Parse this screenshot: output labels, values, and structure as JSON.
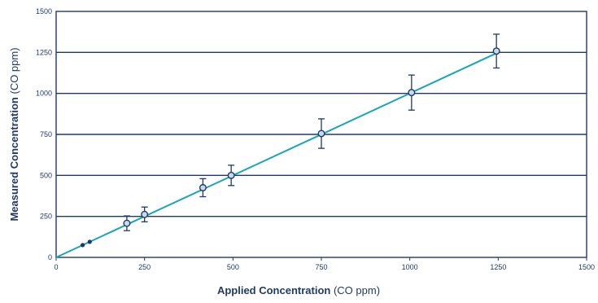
{
  "chart_data": {
    "type": "scatter",
    "title": "",
    "xlabel": "Applied Concentration",
    "xlabel_unit": "(CO ppm)",
    "ylabel": "Measured Concentration",
    "ylabel_unit": "(CO ppm)",
    "xlim": [
      0,
      1500
    ],
    "ylim": [
      0,
      1500
    ],
    "x_ticks": [
      0,
      250,
      500,
      750,
      1000,
      1250,
      1500
    ],
    "y_ticks": [
      0,
      250,
      500,
      750,
      1000,
      1250,
      1500
    ],
    "grid": "horizontal",
    "colors": {
      "frame": "#1f3a66",
      "fit_line": "#1aa6b7",
      "markers": "#1f3a66"
    },
    "fit_line": {
      "x": [
        0,
        1250
      ],
      "y": [
        0,
        1250
      ]
    },
    "series": [
      {
        "points": [
          {
            "x": 75,
            "y": 75
          },
          {
            "x": 95,
            "y": 95
          }
        ]
      },
      {
        "points": [
          {
            "x": 200,
            "y": 208,
            "err": 45
          },
          {
            "x": 250,
            "y": 262,
            "err": 45
          },
          {
            "x": 415,
            "y": 425,
            "err": 55
          },
          {
            "x": 495,
            "y": 500,
            "err": 62
          },
          {
            "x": 750,
            "y": 755,
            "err": 90
          },
          {
            "x": 1005,
            "y": 1005,
            "err": 107
          },
          {
            "x": 1245,
            "y": 1258,
            "err": 103
          }
        ]
      }
    ]
  }
}
